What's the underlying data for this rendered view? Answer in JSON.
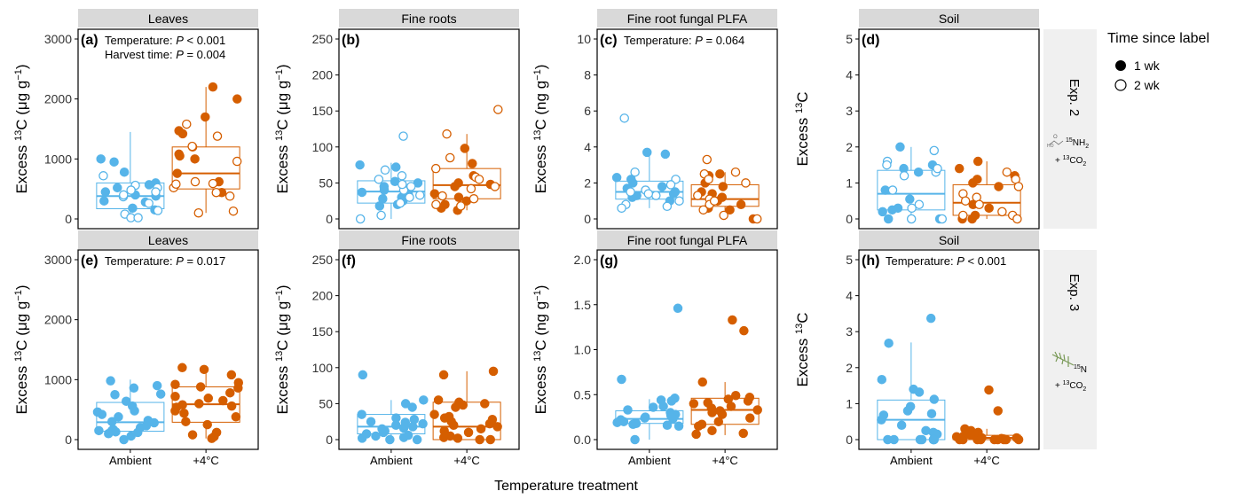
{
  "legend": {
    "title": "Time since label",
    "items": [
      {
        "label": "1 wk",
        "filled": true
      },
      {
        "label": "2 wk",
        "filled": false
      }
    ]
  },
  "strips": {
    "exp2": "Exp. 2",
    "exp3": "Exp. 3",
    "exp2_sub": "15NH2",
    "exp2_sub2": "+ 13CO2",
    "exp3_sub": "15N",
    "exp3_sub2": "+ 13CO2"
  },
  "xlabel": "Temperature treatment",
  "colors": {
    "ambient": "#56B4E9",
    "warm": "#D55E00",
    "strip": "#d9d9d9",
    "side_strip": "#f0f0f0"
  },
  "chart_data": [
    {
      "id": "a",
      "type": "scatter",
      "title": "Leaves",
      "ylabel_unit": "μg g−1",
      "ylim": [
        0,
        3000
      ],
      "yticks": [
        0,
        1000,
        2000,
        3000
      ],
      "categories": [
        "Ambient",
        "+4°C"
      ],
      "annotations": [
        {
          "label": "Temperature: ",
          "p": "P",
          "value": " < 0.001"
        },
        {
          "label": "Harvest time: ",
          "p": "P",
          "value": " = 0.004"
        }
      ],
      "box": {
        "Ambient": {
          "q1": 170,
          "median": 380,
          "q3": 600,
          "min": 0,
          "max": 1450
        },
        "+4°C": {
          "q1": 500,
          "median": 760,
          "q3": 1200,
          "min": 100,
          "max": 2200
        }
      },
      "series": [
        {
          "name": "1 wk",
          "x_values": {
            "Ambient": [
              280,
              400,
              380,
              180,
              450,
              600,
              950,
              1000,
              780,
              520,
              570,
              150,
              300
            ],
            "+4°C": [
              440,
              620,
              760,
              1000,
              1200,
              2200,
              2000,
              1470,
              1420,
              1080,
              1700,
              1050
            ]
          }
        },
        {
          "name": "2 wk",
          "x_values": {
            "Ambient": [
              720,
              520,
              450,
              370,
              260,
              140,
              80,
              20,
              20,
              560,
              480,
              400
            ],
            "+4°C": [
              1210,
              1580,
              1380,
              960,
              520,
              380,
              580,
              620,
              100,
              130,
              590,
              440
            ]
          }
        }
      ]
    },
    {
      "id": "b",
      "type": "scatter",
      "title": "Fine roots",
      "ylabel_unit": "μg g−1",
      "ylim": [
        0,
        250
      ],
      "yticks": [
        0,
        50,
        100,
        150,
        200,
        250
      ],
      "categories": [
        "Ambient",
        "+4°C"
      ],
      "annotations": [],
      "box": {
        "Ambient": {
          "q1": 22,
          "median": 38,
          "q3": 53,
          "min": 0,
          "max": 78
        },
        "+4°C": {
          "q1": 28,
          "median": 47,
          "q3": 70,
          "min": 12,
          "max": 118
        }
      },
      "series": [
        {
          "name": "1 wk",
          "x_values": {
            "Ambient": [
              20,
              30,
              37,
              45,
              50,
              75,
              72,
              25,
              18,
              52,
              40,
              28,
              35
            ],
            "+4°C": [
              98,
              77,
              60,
              45,
              30,
              25,
              12,
              20,
              48,
              35,
              50,
              15
            ]
          }
        },
        {
          "name": "2 wk",
          "x_values": {
            "Ambient": [
              115,
              68,
              60,
              45,
              40,
              33,
              30,
              22,
              5,
              0,
              48,
              55
            ],
            "+4°C": [
              152,
              118,
              85,
              70,
              58,
              42,
              28,
              18,
              55,
              32,
              45,
              20
            ]
          }
        }
      ]
    },
    {
      "id": "c",
      "type": "scatter",
      "title": "Fine root fungal PLFA",
      "ylabel_unit": "ng g−1",
      "ylim": [
        0,
        10
      ],
      "yticks": [
        0,
        2,
        4,
        6,
        8,
        10
      ],
      "categories": [
        "Ambient",
        "+4°C"
      ],
      "annotations": [
        {
          "label": "Temperature: ",
          "p": "P",
          "value": " = 0.064"
        }
      ],
      "box": {
        "Ambient": {
          "q1": 1.1,
          "median": 1.5,
          "q3": 2.1,
          "min": 0.6,
          "max": 3.7
        },
        "+4°C": {
          "q1": 0.7,
          "median": 1.1,
          "q3": 1.9,
          "min": 0.0,
          "max": 2.6
        }
      },
      "series": [
        {
          "name": "1 wk",
          "x_values": {
            "Ambient": [
              3.7,
              3.6,
              2.2,
              2.0,
              1.8,
              1.7,
              1.5,
              1.3,
              1.2,
              1.0,
              2.3,
              1.4
            ],
            "+4°C": [
              2.5,
              2.0,
              1.8,
              1.5,
              1.4,
              1.2,
              1.0,
              0.8,
              0.6,
              0.5,
              0.0,
              2.4
            ]
          }
        },
        {
          "name": "2 wk",
          "x_values": {
            "Ambient": [
              5.6,
              2.6,
              2.2,
              1.6,
              1.5,
              1.3,
              1.0,
              0.8,
              0.7,
              0.6,
              1.4,
              1.9
            ],
            "+4°C": [
              3.3,
              2.6,
              2.5,
              2.0,
              1.3,
              1.1,
              0.8,
              0.5,
              0.2,
              0.0,
              1.0,
              2.2
            ]
          }
        }
      ]
    },
    {
      "id": "d",
      "type": "scatter",
      "title": "Soil",
      "ylabel_unit": "",
      "ylim": [
        0,
        5
      ],
      "yticks": [
        0,
        1,
        2,
        3,
        4,
        5
      ],
      "categories": [
        "Ambient",
        "+4°C"
      ],
      "annotations": [],
      "box": {
        "Ambient": {
          "q1": 0.25,
          "median": 0.7,
          "q3": 1.35,
          "min": 0.0,
          "max": 2.0
        },
        "+4°C": {
          "q1": 0.1,
          "median": 0.45,
          "q3": 0.95,
          "min": 0.0,
          "max": 1.6
        }
      },
      "series": [
        {
          "name": "1 wk",
          "x_values": {
            "Ambient": [
              2.0,
              1.5,
              1.4,
              0.8,
              0.55,
              0.3,
              0.25,
              0.0,
              0.0,
              0.2,
              1.3
            ],
            "+4°C": [
              1.6,
              1.4,
              1.2,
              1.1,
              0.9,
              0.4,
              0.3,
              0.0,
              0.0,
              0.1,
              1.0
            ]
          }
        },
        {
          "name": "2 wk",
          "x_values": {
            "Ambient": [
              1.9,
              1.6,
              1.5,
              1.3,
              1.2,
              0.8,
              0.4,
              0.3,
              0.0,
              0.0,
              1.4
            ],
            "+4°C": [
              1.3,
              1.1,
              0.9,
              0.7,
              0.6,
              0.5,
              0.4,
              0.1,
              0.1,
              0.0,
              0.2
            ]
          }
        }
      ]
    },
    {
      "id": "e",
      "type": "scatter",
      "title": "Leaves",
      "ylabel_unit": "μg g−1",
      "ylim": [
        0,
        3000
      ],
      "yticks": [
        0,
        1000,
        2000,
        3000
      ],
      "categories": [
        "Ambient",
        "+4°C"
      ],
      "annotations": [
        {
          "label": "Temperature: ",
          "p": "P",
          "value": " = 0.017"
        }
      ],
      "box": {
        "Ambient": {
          "q1": 140,
          "median": 290,
          "q3": 620,
          "min": 0,
          "max": 1000
        },
        "+4°C": {
          "q1": 290,
          "median": 590,
          "q3": 880,
          "min": 20,
          "max": 1200
        }
      },
      "series": [
        {
          "name": "1 wk",
          "x_values": {
            "Ambient": [
              980,
              900,
              860,
              760,
              750,
              640,
              560,
              480,
              420,
              380,
              300,
              280,
              230,
              200,
              170,
              150,
              130,
              120,
              100,
              60,
              0,
              460,
              320,
              150
            ],
            "+4°C": [
              1200,
              1170,
              1080,
              950,
              920,
              880,
              860,
              780,
              720,
              690,
              600,
              580,
              540,
              480,
              440,
              380,
              300,
              250,
              120,
              80,
              50,
              20,
              650,
              560
            ]
          }
        }
      ]
    },
    {
      "id": "f",
      "type": "scatter",
      "title": "Fine roots",
      "ylabel_unit": "μg g−1",
      "ylim": [
        0,
        250
      ],
      "yticks": [
        0,
        50,
        100,
        150,
        200,
        250
      ],
      "categories": [
        "Ambient",
        "+4°C"
      ],
      "annotations": [],
      "box": {
        "Ambient": {
          "q1": 8,
          "median": 18,
          "q3": 35,
          "min": 0,
          "max": 55
        },
        "+4°C": {
          "q1": 0,
          "median": 18,
          "q3": 52,
          "min": 0,
          "max": 95
        }
      },
      "series": [
        {
          "name": "1 wk",
          "x_values": {
            "Ambient": [
              90,
              55,
              50,
              45,
              35,
              30,
              28,
              25,
              22,
              20,
              18,
              15,
              12,
              10,
              8,
              6,
              5,
              3,
              2,
              0,
              0,
              24,
              16
            ],
            "+4°C": [
              95,
              90,
              55,
              52,
              50,
              48,
              45,
              35,
              32,
              30,
              25,
              22,
              20,
              18,
              15,
              12,
              10,
              5,
              3,
              2,
              0,
              0,
              28
            ]
          }
        }
      ]
    },
    {
      "id": "g",
      "type": "scatter",
      "title": "Fine root fungal PLFA",
      "ylabel_unit": "ng g−1",
      "ylim": [
        0,
        2.0
      ],
      "yticks": [
        0.0,
        0.5,
        1.0,
        1.5,
        2.0
      ],
      "categories": [
        "Ambient",
        "+4°C"
      ],
      "annotations": [],
      "box": {
        "Ambient": {
          "q1": 0.18,
          "median": 0.23,
          "q3": 0.32,
          "min": 0.0,
          "max": 0.45
        },
        "+4°C": {
          "q1": 0.17,
          "median": 0.33,
          "q3": 0.46,
          "min": 0.05,
          "max": 0.64
        }
      },
      "series": [
        {
          "name": "1 wk",
          "x_values": {
            "Ambient": [
              1.46,
              0.67,
              0.46,
              0.44,
              0.43,
              0.37,
              0.33,
              0.3,
              0.28,
              0.27,
              0.25,
              0.23,
              0.22,
              0.2,
              0.19,
              0.18,
              0.17,
              0.16,
              0.15,
              0.0,
              0.36,
              0.24
            ],
            "+4°C": [
              1.33,
              1.21,
              0.64,
              0.49,
              0.47,
              0.45,
              0.43,
              0.41,
              0.4,
              0.37,
              0.35,
              0.33,
              0.3,
              0.28,
              0.24,
              0.2,
              0.17,
              0.15,
              0.1,
              0.07,
              0.06,
              0.32
            ]
          }
        }
      ]
    },
    {
      "id": "h",
      "type": "scatter",
      "title": "Soil",
      "ylabel_unit": "",
      "ylim": [
        0,
        5
      ],
      "yticks": [
        0,
        1,
        2,
        3,
        4,
        5
      ],
      "categories": [
        "Ambient",
        "+4°C"
      ],
      "annotations": [
        {
          "label": "Temperature: ",
          "p": "P",
          "value": " < 0.001"
        }
      ],
      "box": {
        "Ambient": {
          "q1": 0.0,
          "median": 0.55,
          "q3": 1.1,
          "min": 0.0,
          "max": 2.7
        },
        "+4°C": {
          "q1": 0.0,
          "median": 0.05,
          "q3": 0.12,
          "min": 0.0,
          "max": 0.3
        }
      },
      "series": [
        {
          "name": "1 wk",
          "x_values": {
            "Ambient": [
              3.37,
              2.68,
              1.67,
              1.4,
              1.32,
              1.12,
              0.92,
              0.8,
              0.72,
              0.68,
              0.55,
              0.4,
              0.25,
              0.2,
              0.15,
              0.0,
              0.0,
              0.0,
              0.0,
              0.0,
              0.0,
              0.0
            ],
            "+4°C": [
              1.38,
              0.8,
              0.3,
              0.25,
              0.2,
              0.15,
              0.12,
              0.1,
              0.08,
              0.05,
              0.05,
              0.03,
              0.02,
              0.0,
              0.0,
              0.0,
              0.0,
              0.0,
              0.0,
              0.0,
              0.0,
              0.0
            ]
          }
        }
      ]
    }
  ]
}
